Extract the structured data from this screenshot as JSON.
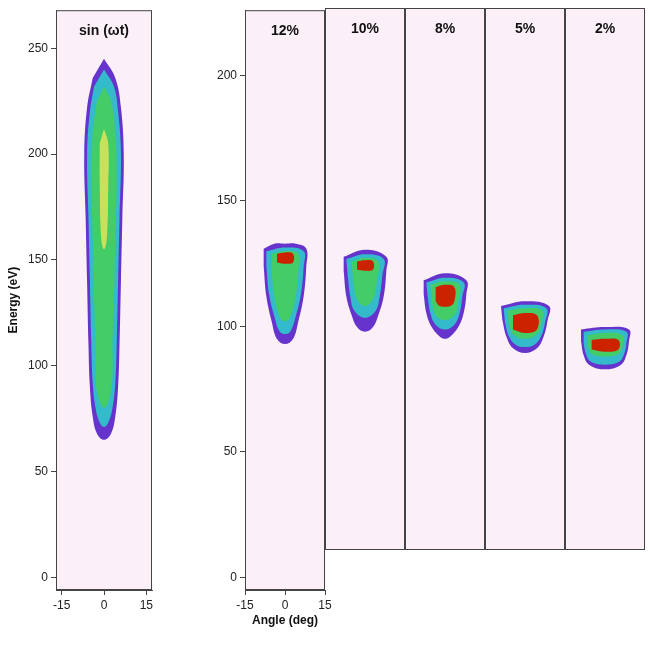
{
  "chart_data": [
    {
      "type": "contour",
      "title": "sin (ωt)",
      "ylabel": "Energy (eV)",
      "grid": false,
      "xlim": [
        -17,
        17
      ],
      "xticks": [
        -15,
        0,
        15
      ],
      "ylim": [
        -6,
        268
      ],
      "yticks": [
        0,
        50,
        100,
        150,
        200,
        250
      ],
      "contours": [
        {
          "color": "#6633cc",
          "points": [
            [
              0,
              245
            ],
            [
              4,
              236
            ],
            [
              6,
              222
            ],
            [
              7,
              200
            ],
            [
              6.5,
              170
            ],
            [
              6,
              140
            ],
            [
              5.5,
              110
            ],
            [
              5,
              90
            ],
            [
              4,
              76
            ],
            [
              2.5,
              68
            ],
            [
              0,
              65
            ],
            [
              -2.5,
              68
            ],
            [
              -4,
              76
            ],
            [
              -5,
              90
            ],
            [
              -5.5,
              110
            ],
            [
              -6,
              140
            ],
            [
              -6.5,
              170
            ],
            [
              -7,
              200
            ],
            [
              -6,
              222
            ],
            [
              -4,
              236
            ]
          ]
        },
        {
          "color": "#33bbcc",
          "points": [
            [
              0,
              240
            ],
            [
              3.5,
              232
            ],
            [
              5,
              220
            ],
            [
              6,
              200
            ],
            [
              5.5,
              170
            ],
            [
              5,
              140
            ],
            [
              4.5,
              110
            ],
            [
              4,
              92
            ],
            [
              3,
              80
            ],
            [
              1.5,
              73
            ],
            [
              0,
              71
            ],
            [
              -1.5,
              73
            ],
            [
              -3,
              80
            ],
            [
              -4,
              92
            ],
            [
              -4.5,
              110
            ],
            [
              -5,
              140
            ],
            [
              -5.5,
              170
            ],
            [
              -6,
              200
            ],
            [
              -5,
              220
            ],
            [
              -3.5,
              232
            ]
          ]
        },
        {
          "color": "#44cc66",
          "points": [
            [
              0,
              232
            ],
            [
              2.5,
              225
            ],
            [
              4,
              210
            ],
            [
              4.5,
              190
            ],
            [
              4,
              160
            ],
            [
              3.5,
              130
            ],
            [
              3,
              110
            ],
            [
              3,
              95
            ],
            [
              2,
              85
            ],
            [
              0,
              80
            ],
            [
              -2,
              85
            ],
            [
              -3,
              95
            ],
            [
              -3,
              110
            ],
            [
              -3.5,
              130
            ],
            [
              -4,
              160
            ],
            [
              -4.5,
              190
            ],
            [
              -4,
              210
            ],
            [
              -2.5,
              225
            ]
          ]
        },
        {
          "color": "#c8e05a",
          "points": [
            [
              0,
              212
            ],
            [
              1.5,
              205
            ],
            [
              1.5,
              185
            ],
            [
              1,
              160
            ],
            [
              0,
              155
            ],
            [
              -1,
              160
            ],
            [
              -1.5,
              185
            ],
            [
              -1.5,
              205
            ]
          ]
        }
      ]
    },
    {
      "type": "contour",
      "title": "12%",
      "xlabel": "Angle (deg)",
      "grid": false,
      "xlim": [
        -15,
        15
      ],
      "xticks": [
        -15,
        0,
        15
      ],
      "ylim": [
        -5,
        226
      ],
      "yticks": [
        0,
        50,
        100,
        150,
        200
      ],
      "contours": [
        {
          "color": "#6633cc",
          "points": [
            [
              -8,
              131
            ],
            [
              -4,
              133
            ],
            [
              0,
              133
            ],
            [
              4,
              133
            ],
            [
              8,
              131
            ],
            [
              8,
              124
            ],
            [
              7,
              112
            ],
            [
              5,
              102
            ],
            [
              3,
              95
            ],
            [
              0,
              93
            ],
            [
              -3,
              95
            ],
            [
              -5,
              102
            ],
            [
              -7,
              112
            ],
            [
              -8,
              124
            ]
          ]
        },
        {
          "color": "#33bbcc",
          "points": [
            [
              -7,
              130
            ],
            [
              0,
              131.5
            ],
            [
              7,
              130
            ],
            [
              7,
              124
            ],
            [
              6,
              113
            ],
            [
              4,
              104
            ],
            [
              2,
              98
            ],
            [
              0,
              97
            ],
            [
              -2,
              98
            ],
            [
              -4,
              104
            ],
            [
              -6,
              113
            ],
            [
              -7,
              124
            ]
          ]
        },
        {
          "color": "#44cc66",
          "points": [
            [
              -5,
              129
            ],
            [
              0,
              130
            ],
            [
              5,
              129
            ],
            [
              5,
              122
            ],
            [
              4,
              112
            ],
            [
              2,
              104
            ],
            [
              0,
              102
            ],
            [
              -2,
              104
            ],
            [
              -4,
              112
            ],
            [
              -5,
              122
            ]
          ]
        },
        {
          "color": "#cc2200",
          "points": [
            [
              -3,
              129
            ],
            [
              0,
              129.5
            ],
            [
              3,
              129
            ],
            [
              3,
              125.5
            ],
            [
              0,
              125
            ],
            [
              -3,
              125.5
            ]
          ]
        }
      ]
    },
    {
      "type": "contour",
      "title": "10%",
      "tick_labels": false,
      "grid": false,
      "xlim": [
        -15,
        15
      ],
      "ylim": [
        -5,
        226
      ],
      "contours": [
        {
          "color": "#6633cc",
          "points": [
            [
              -8,
              120
            ],
            [
              0,
              123
            ],
            [
              8,
              120
            ],
            [
              8,
              114
            ],
            [
              7,
              103
            ],
            [
              5,
              95
            ],
            [
              3,
              90
            ],
            [
              0,
              88
            ],
            [
              -3,
              90
            ],
            [
              -5,
              95
            ],
            [
              -7,
              103
            ],
            [
              -8,
              114
            ]
          ]
        },
        {
          "color": "#33bbcc",
          "points": [
            [
              -7,
              119
            ],
            [
              0,
              121
            ],
            [
              7,
              119
            ],
            [
              6.5,
              112
            ],
            [
              5.5,
              103
            ],
            [
              4,
              97
            ],
            [
              0,
              94
            ],
            [
              -4,
              97
            ],
            [
              -5.5,
              103
            ],
            [
              -6.5,
              112
            ]
          ]
        },
        {
          "color": "#44cc66",
          "points": [
            [
              -5,
              118
            ],
            [
              0,
              119.5
            ],
            [
              5,
              118
            ],
            [
              4.5,
              110
            ],
            [
              3,
              102
            ],
            [
              0,
              99
            ],
            [
              -3,
              102
            ],
            [
              -4.5,
              110
            ]
          ]
        },
        {
          "color": "#cc2200",
          "points": [
            [
              -3,
              118
            ],
            [
              0,
              118.5
            ],
            [
              3,
              118
            ],
            [
              3,
              114.5
            ],
            [
              0,
              114
            ],
            [
              -3,
              114.5
            ]
          ]
        }
      ]
    },
    {
      "type": "contour",
      "title": "8%",
      "tick_labels": false,
      "grid": false,
      "xlim": [
        -15,
        15
      ],
      "ylim": [
        -5,
        226
      ],
      "contours": [
        {
          "color": "#6633cc",
          "points": [
            [
              -8,
              110
            ],
            [
              0,
              113
            ],
            [
              8,
              110
            ],
            [
              8,
              104
            ],
            [
              7,
              96
            ],
            [
              5,
              90
            ],
            [
              2,
              86
            ],
            [
              0,
              85
            ],
            [
              -2,
              86
            ],
            [
              -5,
              90
            ],
            [
              -7,
              96
            ],
            [
              -8,
              104
            ]
          ]
        },
        {
          "color": "#33bbcc",
          "points": [
            [
              -7,
              109
            ],
            [
              0,
              111
            ],
            [
              7,
              109
            ],
            [
              6.5,
              103
            ],
            [
              5.5,
              96
            ],
            [
              3.5,
              91
            ],
            [
              0,
              89
            ],
            [
              -3.5,
              91
            ],
            [
              -5.5,
              96
            ],
            [
              -6.5,
              103
            ]
          ]
        },
        {
          "color": "#44cc66",
          "points": [
            [
              -5.5,
              108
            ],
            [
              0,
              109.5
            ],
            [
              5.5,
              108
            ],
            [
              5,
              101
            ],
            [
              3.5,
              95
            ],
            [
              0,
              93
            ],
            [
              -3.5,
              95
            ],
            [
              -5,
              101
            ]
          ]
        },
        {
          "color": "#cc2200",
          "points": [
            [
              -3.5,
              107
            ],
            [
              0,
              108
            ],
            [
              3.5,
              107
            ],
            [
              3.5,
              101
            ],
            [
              2,
              99
            ],
            [
              -2,
              99
            ],
            [
              -3.5,
              101
            ]
          ]
        }
      ]
    },
    {
      "type": "contour",
      "title": "5%",
      "tick_labels": false,
      "grid": false,
      "xlim": [
        -15,
        15
      ],
      "ylim": [
        -5,
        226
      ],
      "contours": [
        {
          "color": "#6633cc",
          "points": [
            [
              -9,
              99
            ],
            [
              0,
              101
            ],
            [
              9,
              99
            ],
            [
              8.5,
              93
            ],
            [
              7,
              86
            ],
            [
              4.5,
              81
            ],
            [
              0,
              79
            ],
            [
              -4.5,
              81
            ],
            [
              -7,
              86
            ],
            [
              -8.5,
              93
            ]
          ]
        },
        {
          "color": "#33bbcc",
          "points": [
            [
              -8,
              98
            ],
            [
              0,
              99.5
            ],
            [
              8,
              98
            ],
            [
              7.5,
              92
            ],
            [
              6,
              86
            ],
            [
              3.5,
              82.5
            ],
            [
              0,
              81.5
            ],
            [
              -3.5,
              82.5
            ],
            [
              -6,
              86
            ],
            [
              -7.5,
              92
            ]
          ]
        },
        {
          "color": "#44cc66",
          "points": [
            [
              -6.5,
              97
            ],
            [
              0,
              98
            ],
            [
              6.5,
              97
            ],
            [
              6,
              91
            ],
            [
              4.5,
              87
            ],
            [
              0,
              85
            ],
            [
              -4.5,
              87
            ],
            [
              -6,
              91
            ]
          ]
        },
        {
          "color": "#cc2200",
          "points": [
            [
              -4.5,
              95
            ],
            [
              0,
              96
            ],
            [
              4.5,
              95
            ],
            [
              4.5,
              89
            ],
            [
              0,
              87.5
            ],
            [
              -4.5,
              89
            ]
          ]
        }
      ]
    },
    {
      "type": "contour",
      "title": "2%",
      "tick_labels": false,
      "grid": false,
      "xlim": [
        -15,
        15
      ],
      "ylim": [
        -5,
        226
      ],
      "contours": [
        {
          "color": "#6633cc",
          "points": [
            [
              -9,
              89
            ],
            [
              0,
              90
            ],
            [
              9,
              89
            ],
            [
              9,
              84
            ],
            [
              8,
              78
            ],
            [
              6,
              74
            ],
            [
              0,
              72
            ],
            [
              -6,
              74
            ],
            [
              -8,
              78
            ],
            [
              -9,
              84
            ]
          ]
        },
        {
          "color": "#33bbcc",
          "points": [
            [
              -8,
              88
            ],
            [
              0,
              89
            ],
            [
              8,
              88
            ],
            [
              8,
              83
            ],
            [
              7,
              78
            ],
            [
              5,
              75
            ],
            [
              0,
              74
            ],
            [
              -5,
              75
            ],
            [
              -7,
              78
            ],
            [
              -8,
              83
            ]
          ]
        },
        {
          "color": "#44cc66",
          "points": [
            [
              -6.5,
              86.5
            ],
            [
              0,
              87.5
            ],
            [
              6.5,
              86.5
            ],
            [
              6.5,
              82
            ],
            [
              5,
              78.5
            ],
            [
              0,
              77.5
            ],
            [
              -5,
              78.5
            ],
            [
              -6.5,
              82
            ]
          ]
        },
        {
          "color": "#cc2200",
          "points": [
            [
              -5,
              84.5
            ],
            [
              0,
              85
            ],
            [
              5,
              84.5
            ],
            [
              5,
              80.5
            ],
            [
              0,
              79.5
            ],
            [
              -5,
              80.5
            ]
          ]
        }
      ]
    }
  ]
}
